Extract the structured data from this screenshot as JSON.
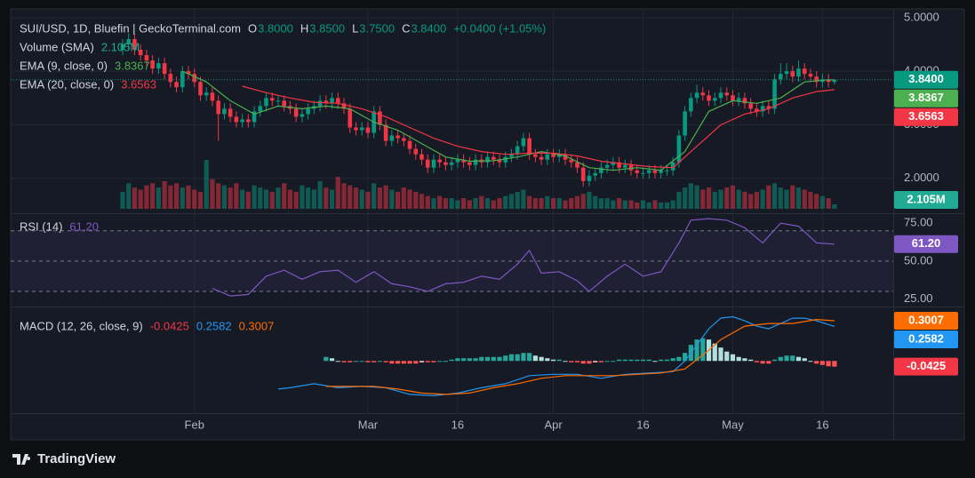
{
  "chart_data": {
    "type": "candlestick",
    "title": "SUI/USD, 1D, Bluefin | GeckoTerminal.com",
    "ohlc": [
      {
        "key": "O",
        "value": 3.8,
        "label": "3.8000"
      },
      {
        "key": "H",
        "value": 3.85,
        "label": "3.8500"
      },
      {
        "key": "L",
        "value": 3.75,
        "label": "3.7500"
      },
      {
        "key": "C",
        "value": 3.84,
        "label": "3.8400"
      }
    ],
    "change": "+0.0400 (+1.05%)",
    "branding": "TradingView",
    "categories": [
      null,
      null,
      null,
      null,
      null,
      null,
      null,
      null,
      null,
      null,
      null,
      null,
      "Feb",
      null,
      null,
      null,
      null,
      null,
      null,
      null,
      null,
      null,
      null,
      null,
      null,
      null,
      null,
      null,
      null,
      null,
      null,
      null,
      null,
      null,
      null,
      null,
      null,
      null,
      null,
      null,
      null,
      "Mar",
      null,
      null,
      null,
      null,
      null,
      null,
      null,
      null,
      null,
      null,
      null,
      null,
      null,
      null,
      "16",
      null,
      null,
      null,
      null,
      null,
      null,
      null,
      null,
      null,
      null,
      null,
      null,
      null,
      null,
      null,
      "Apr",
      null,
      null,
      null,
      null,
      null,
      null,
      null,
      null,
      null,
      null,
      null,
      null,
      null,
      null,
      "16",
      null,
      null,
      null,
      null,
      null,
      null,
      null,
      null,
      null,
      null,
      null,
      null,
      null,
      null,
      "May",
      null,
      null,
      null,
      null,
      null,
      null,
      null,
      null,
      null,
      null,
      null,
      null,
      null,
      null,
      "16",
      null,
      null
    ],
    "open": [
      4.4,
      4.5,
      4.6,
      4.4,
      4.3,
      4.2,
      4.05,
      4.15,
      3.95,
      3.8,
      3.7,
      4.0,
      3.95,
      3.8,
      3.55,
      3.6,
      3.45,
      3.2,
      3.3,
      3.15,
      3.05,
      3.1,
      3.05,
      3.25,
      3.35,
      3.5,
      3.45,
      3.45,
      3.35,
      3.3,
      3.15,
      3.2,
      3.3,
      3.35,
      3.45,
      3.4,
      3.5,
      3.4,
      3.3,
      2.95,
      2.9,
      2.95,
      2.85,
      3.25,
      3.0,
      2.7,
      2.8,
      2.75,
      2.7,
      2.55,
      2.45,
      2.35,
      2.2,
      2.35,
      2.3,
      2.25,
      2.3,
      2.35,
      2.3,
      2.25,
      2.35,
      2.3,
      2.4,
      2.35,
      2.3,
      2.4,
      2.45,
      2.6,
      2.75,
      2.45,
      2.4,
      2.35,
      2.45,
      2.4,
      2.45,
      2.35,
      2.3,
      2.2,
      1.95,
      2.05,
      2.1,
      2.2,
      2.25,
      2.3,
      2.2,
      2.25,
      2.15,
      2.1,
      2.1,
      2.15,
      2.1,
      2.15,
      2.15,
      2.3,
      2.8,
      3.25,
      3.5,
      3.6,
      3.55,
      3.45,
      3.5,
      3.6,
      3.55,
      3.45,
      3.5,
      3.4,
      3.3,
      3.25,
      3.35,
      3.3,
      3.85,
      3.95,
      4.0,
      3.9,
      4.05,
      3.95,
      3.9,
      3.8,
      3.85,
      3.8
    ],
    "high": [
      4.6,
      4.7,
      4.7,
      4.5,
      4.4,
      4.3,
      4.25,
      4.25,
      4.05,
      3.9,
      4.1,
      4.1,
      4.05,
      3.9,
      3.7,
      3.7,
      3.55,
      3.4,
      3.4,
      3.25,
      3.2,
      3.2,
      3.35,
      3.45,
      3.6,
      3.6,
      3.55,
      3.55,
      3.45,
      3.4,
      3.3,
      3.4,
      3.45,
      3.55,
      3.55,
      3.6,
      3.6,
      3.5,
      3.4,
      3.05,
      3.05,
      3.05,
      3.35,
      3.35,
      3.1,
      2.9,
      2.9,
      2.85,
      2.8,
      2.65,
      2.55,
      2.45,
      2.45,
      2.45,
      2.4,
      2.4,
      2.45,
      2.45,
      2.4,
      2.45,
      2.45,
      2.5,
      2.5,
      2.45,
      2.5,
      2.55,
      2.7,
      2.85,
      2.85,
      2.55,
      2.5,
      2.55,
      2.55,
      2.55,
      2.55,
      2.45,
      2.4,
      2.3,
      2.15,
      2.2,
      2.3,
      2.35,
      2.4,
      2.4,
      2.35,
      2.35,
      2.25,
      2.2,
      2.25,
      2.25,
      2.25,
      2.25,
      2.4,
      2.9,
      3.35,
      3.6,
      3.75,
      3.7,
      3.65,
      3.6,
      3.7,
      3.7,
      3.65,
      3.6,
      3.6,
      3.5,
      3.4,
      3.45,
      3.45,
      3.95,
      4.15,
      4.15,
      4.1,
      4.2,
      4.15,
      4.05,
      4.0,
      3.95,
      3.95,
      3.85
    ],
    "low": [
      4.3,
      4.4,
      4.3,
      4.2,
      4.1,
      3.95,
      3.95,
      3.85,
      3.7,
      3.6,
      3.6,
      3.85,
      3.7,
      3.45,
      3.45,
      3.35,
      2.7,
      3.1,
      3.05,
      2.95,
      2.95,
      2.95,
      2.95,
      3.15,
      3.25,
      3.35,
      3.35,
      3.25,
      3.2,
      3.05,
      3.05,
      3.1,
      3.2,
      3.25,
      3.3,
      3.3,
      3.3,
      3.2,
      2.85,
      2.8,
      2.8,
      2.75,
      2.75,
      2.9,
      2.6,
      2.6,
      2.65,
      2.6,
      2.45,
      2.35,
      2.25,
      2.1,
      2.1,
      2.2,
      2.15,
      2.15,
      2.2,
      2.2,
      2.15,
      2.15,
      2.2,
      2.2,
      2.25,
      2.2,
      2.2,
      2.3,
      2.35,
      2.5,
      2.35,
      2.3,
      2.25,
      2.25,
      2.3,
      2.3,
      2.25,
      2.2,
      2.1,
      1.85,
      1.85,
      1.95,
      2.0,
      2.1,
      2.15,
      2.1,
      2.1,
      2.05,
      2.0,
      2.0,
      2.0,
      2.0,
      2.0,
      2.05,
      2.05,
      2.2,
      2.7,
      3.15,
      3.4,
      3.45,
      3.35,
      3.35,
      3.4,
      3.45,
      3.35,
      3.35,
      3.3,
      3.2,
      3.15,
      3.15,
      3.2,
      3.2,
      3.75,
      3.85,
      3.8,
      3.8,
      3.85,
      3.8,
      3.7,
      3.7,
      3.7,
      3.75
    ],
    "close": [
      4.5,
      4.6,
      4.4,
      4.3,
      4.2,
      4.05,
      4.15,
      3.95,
      3.8,
      3.7,
      4.0,
      3.95,
      3.8,
      3.55,
      3.6,
      3.45,
      3.2,
      3.3,
      3.15,
      3.05,
      3.1,
      3.05,
      3.25,
      3.35,
      3.5,
      3.45,
      3.45,
      3.35,
      3.3,
      3.15,
      3.2,
      3.3,
      3.35,
      3.45,
      3.4,
      3.5,
      3.4,
      3.3,
      2.95,
      2.9,
      2.95,
      2.85,
      3.25,
      3.0,
      2.7,
      2.8,
      2.75,
      2.7,
      2.55,
      2.45,
      2.35,
      2.2,
      2.35,
      2.3,
      2.25,
      2.3,
      2.35,
      2.3,
      2.25,
      2.35,
      2.3,
      2.4,
      2.35,
      2.3,
      2.4,
      2.45,
      2.6,
      2.75,
      2.45,
      2.4,
      2.35,
      2.45,
      2.4,
      2.45,
      2.35,
      2.3,
      2.2,
      1.95,
      2.05,
      2.1,
      2.2,
      2.25,
      2.3,
      2.2,
      2.25,
      2.15,
      2.1,
      2.1,
      2.15,
      2.1,
      2.15,
      2.15,
      2.3,
      2.8,
      3.25,
      3.5,
      3.6,
      3.55,
      3.45,
      3.5,
      3.6,
      3.55,
      3.45,
      3.5,
      3.4,
      3.3,
      3.25,
      3.35,
      3.3,
      3.85,
      3.95,
      4.0,
      3.9,
      4.05,
      3.95,
      3.9,
      3.8,
      3.85,
      3.8,
      3.84
    ],
    "up_color": "#089981",
    "down_color": "#f23645",
    "ylim": [
      1.35,
      5.13
    ],
    "yticks": [
      {
        "value": 2,
        "label": "2.0000"
      },
      {
        "value": 3,
        "label": "3.0000"
      },
      {
        "value": 4,
        "label": "4.0000"
      },
      {
        "value": 5,
        "label": "5.0000"
      }
    ],
    "grid": true,
    "volume": {
      "name": "Volume (SMA)",
      "color": "#22ab94",
      "ylim": [
        0,
        46000000.0
      ],
      "last_label": "2.105M",
      "values": [
        8000000.0,
        12000000.0,
        10000000.0,
        9000000.0,
        11000000.0,
        12000000.0,
        10000000.0,
        13000000.0,
        11000000.0,
        12000000.0,
        10000000.0,
        11000000.0,
        9000000.0,
        8000000.0,
        23000000.0,
        14000000.0,
        12000000.0,
        11000000.0,
        10000000.0,
        12000000.0,
        9000000.0,
        8000000.0,
        11000000.0,
        10000000.0,
        9000000.0,
        8000000.0,
        10000000.0,
        12000000.0,
        9000000.0,
        8000000.0,
        11000000.0,
        10000000.0,
        9000000.0,
        13000000.0,
        10000000.0,
        9000000.0,
        15000000.0,
        12000000.0,
        11000000.0,
        10000000.0,
        9000000.0,
        8000000.0,
        12000000.0,
        10000000.0,
        11000000.0,
        9000000.0,
        8000000.0,
        10000000.0,
        9000000.0,
        8000000.0,
        7000000.0,
        6000000.0,
        5000000.0,
        6000000.0,
        5000000.0,
        5000000.0,
        4000000.0,
        5000000.0,
        4000000.0,
        5000000.0,
        6000000.0,
        5000000.0,
        4000000.0,
        5000000.0,
        6000000.0,
        7000000.0,
        8000000.0,
        9000000.0,
        6000000.0,
        5000000.0,
        5000000.0,
        6000000.0,
        5000000.0,
        5000000.0,
        4000000.0,
        5000000.0,
        6000000.0,
        7000000.0,
        8000000.0,
        6000000.0,
        5000000.0,
        5000000.0,
        4000000.0,
        5000000.0,
        4000000.0,
        4000000.0,
        3000000.0,
        4000000.0,
        3000000.0,
        4000000.0,
        3000000.0,
        3000000.0,
        4000000.0,
        8000000.0,
        10000000.0,
        12000000.0,
        11000000.0,
        9000000.0,
        10000000.0,
        8000000.0,
        9000000.0,
        10000000.0,
        11000000.0,
        9000000.0,
        8000000.0,
        7000000.0,
        8000000.0,
        9000000.0,
        11000000.0,
        12000000.0,
        10000000.0,
        9000000.0,
        11000000.0,
        10000000.0,
        9000000.0,
        8000000.0,
        7000000.0,
        6000000.0,
        5000000.0,
        2105000.0
      ]
    },
    "overlays": [
      {
        "name": "EMA (9, close, 0)",
        "color": "#4caf50",
        "last_label": "3.8367",
        "x": [
          10,
          14,
          18,
          22,
          26,
          30,
          34,
          38,
          42,
          46,
          50,
          54,
          58,
          62,
          66,
          70,
          74,
          78,
          82,
          86,
          90,
          94,
          98,
          102,
          106,
          110,
          114,
          118,
          119
        ],
        "values": [
          4.0,
          3.8,
          3.45,
          3.2,
          3.35,
          3.3,
          3.35,
          3.3,
          3.05,
          2.9,
          2.65,
          2.4,
          2.32,
          2.33,
          2.4,
          2.5,
          2.42,
          2.2,
          2.15,
          2.2,
          2.15,
          2.5,
          3.25,
          3.45,
          3.4,
          3.5,
          3.8,
          3.84,
          3.8367
        ]
      },
      {
        "name": "EMA (20, close, 0)",
        "color": "#f23645",
        "last_label": "3.6563",
        "x": [
          20,
          24,
          28,
          32,
          36,
          40,
          44,
          48,
          52,
          56,
          60,
          64,
          68,
          72,
          76,
          80,
          84,
          88,
          92,
          96,
          100,
          104,
          108,
          112,
          116,
          119
        ],
        "values": [
          3.72,
          3.6,
          3.5,
          3.42,
          3.4,
          3.3,
          3.15,
          2.95,
          2.75,
          2.6,
          2.5,
          2.45,
          2.47,
          2.47,
          2.42,
          2.32,
          2.27,
          2.22,
          2.2,
          2.6,
          3.0,
          3.2,
          3.3,
          3.5,
          3.62,
          3.6563
        ]
      }
    ],
    "rsi": {
      "name": "RSI (14)",
      "color": "#7e57c2",
      "last_label": "61.20",
      "ylim": [
        20,
        81
      ],
      "yticks": [
        {
          "value": 25,
          "label": "25.00"
        },
        {
          "value": 50,
          "label": "50.00"
        },
        {
          "value": 75,
          "label": "75.00"
        }
      ],
      "levels": [
        30,
        50,
        70
      ],
      "x": [
        15,
        18,
        21,
        24,
        27,
        30,
        33,
        36,
        39,
        42,
        45,
        48,
        51,
        54,
        57,
        60,
        63,
        66,
        68,
        70,
        73,
        76,
        78,
        81,
        84,
        87,
        90,
        93,
        95,
        98,
        101,
        104,
        107,
        110,
        113,
        116,
        119
      ],
      "values": [
        32,
        27,
        28,
        40,
        44,
        38,
        43,
        44,
        36,
        43,
        35,
        33,
        30,
        35,
        36,
        40,
        38,
        48,
        57,
        42,
        43,
        37,
        30,
        40,
        48,
        40,
        43,
        62,
        77,
        78,
        77,
        72,
        62,
        75,
        73,
        62,
        61.2
      ]
    },
    "macd": {
      "name": "MACD (12, 26, close, 9)",
      "ylim": [
        -0.39,
        0.4
      ],
      "histogram": {
        "last_label": "-0.0425",
        "color": "#f23645",
        "up_colors": [
          "#26a69a",
          "#b2dfdb"
        ],
        "down_colors": [
          "#ff5252",
          "#ffcdd2"
        ],
        "values": [
          null,
          null,
          null,
          null,
          null,
          null,
          null,
          null,
          null,
          null,
          null,
          null,
          null,
          null,
          null,
          null,
          null,
          null,
          null,
          null,
          null,
          null,
          null,
          null,
          null,
          null,
          null,
          null,
          null,
          null,
          null,
          null,
          null,
          null,
          0.03,
          0.02,
          0.0,
          -0.01,
          -0.01,
          0.0,
          0.0,
          -0.01,
          -0.01,
          0.0,
          -0.01,
          -0.02,
          -0.02,
          -0.02,
          -0.02,
          -0.02,
          -0.01,
          -0.01,
          -0.01,
          0.0,
          0.0,
          0.01,
          0.02,
          0.02,
          0.02,
          0.02,
          0.03,
          0.03,
          0.03,
          0.03,
          0.04,
          0.05,
          0.05,
          0.06,
          0.06,
          0.04,
          0.03,
          0.02,
          0.01,
          0.01,
          0.0,
          -0.01,
          -0.01,
          -0.02,
          -0.02,
          -0.01,
          -0.01,
          0.0,
          0.0,
          0.01,
          0.01,
          0.01,
          0.01,
          0.01,
          0.01,
          0.0,
          0.01,
          0.01,
          0.02,
          0.03,
          0.06,
          0.12,
          0.16,
          0.17,
          0.16,
          0.13,
          0.1,
          0.07,
          0.05,
          0.03,
          0.02,
          0.01,
          -0.01,
          -0.02,
          -0.02,
          0.01,
          0.03,
          0.04,
          0.04,
          0.03,
          0.02,
          0.0,
          -0.02,
          -0.03,
          -0.04,
          -0.0425
        ]
      },
      "series": [
        {
          "color": "#2196f3",
          "last_label": "0.2582",
          "x": [
            26,
            28,
            32,
            36,
            40,
            44,
            48,
            52,
            56,
            60,
            64,
            68,
            72,
            76,
            80,
            84,
            88,
            92,
            94,
            96,
            98,
            100,
            102,
            104,
            106,
            108,
            110,
            112,
            114,
            116,
            119
          ],
          "values": [
            -0.21,
            -0.2,
            -0.17,
            -0.2,
            -0.19,
            -0.2,
            -0.25,
            -0.26,
            -0.24,
            -0.2,
            -0.17,
            -0.11,
            -0.1,
            -0.1,
            -0.13,
            -0.1,
            -0.09,
            -0.08,
            0.0,
            0.12,
            0.24,
            0.32,
            0.33,
            0.3,
            0.26,
            0.24,
            0.28,
            0.32,
            0.32,
            0.3,
            0.2582
          ]
        },
        {
          "color": "#ff6d00",
          "last_label": "0.3007",
          "x": [
            34,
            38,
            42,
            46,
            50,
            54,
            58,
            62,
            66,
            70,
            74,
            78,
            82,
            86,
            90,
            94,
            98,
            100,
            104,
            108,
            112,
            116,
            119
          ],
          "values": [
            -0.19,
            -0.19,
            -0.19,
            -0.21,
            -0.24,
            -0.25,
            -0.24,
            -0.2,
            -0.17,
            -0.13,
            -0.11,
            -0.11,
            -0.11,
            -0.1,
            -0.09,
            -0.06,
            0.08,
            0.16,
            0.26,
            0.28,
            0.28,
            0.31,
            0.3007
          ]
        }
      ]
    }
  }
}
